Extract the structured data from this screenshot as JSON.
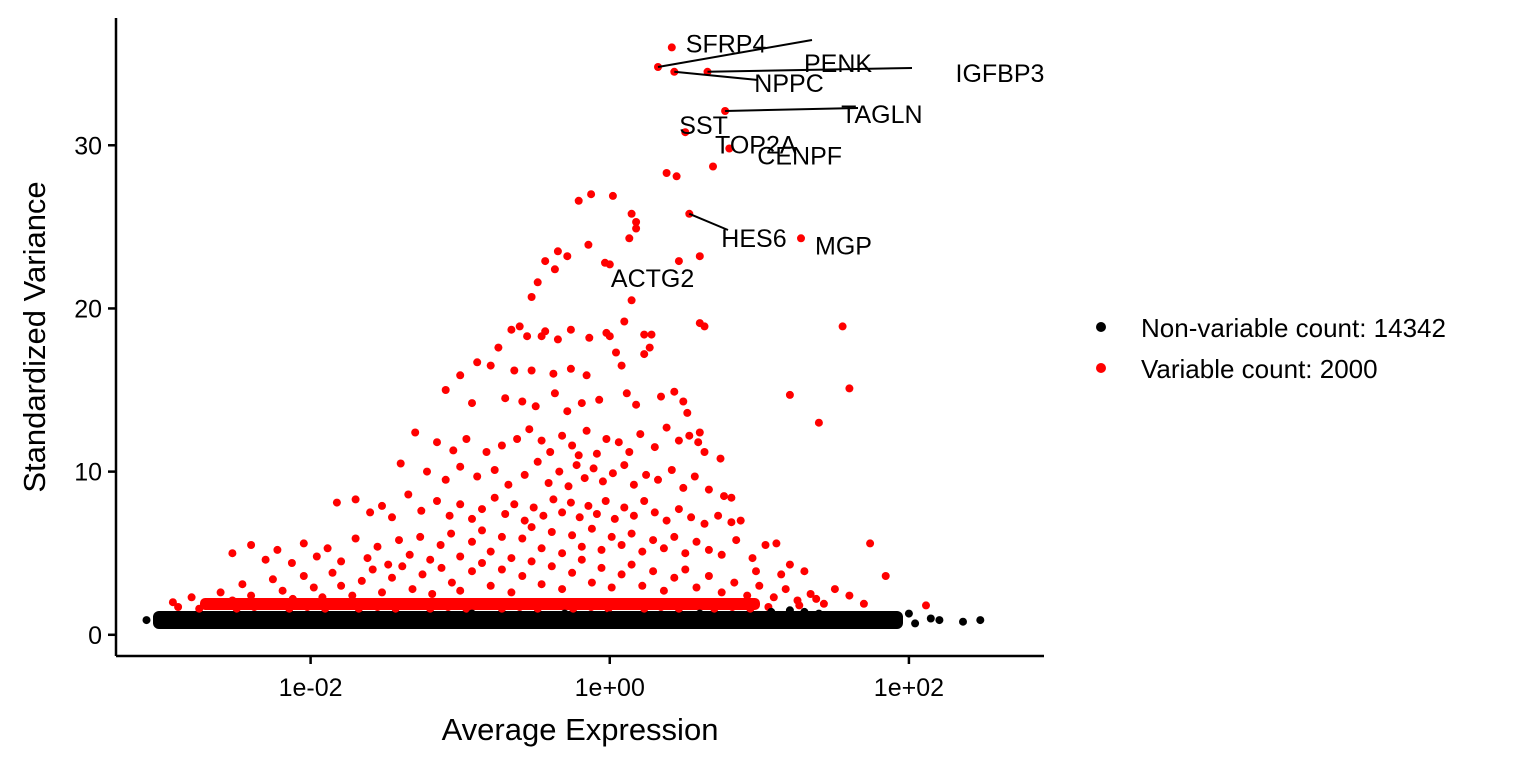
{
  "chart_data": {
    "type": "scatter",
    "title": "",
    "xlabel": "Average Expression",
    "ylabel": "Standardized Variance",
    "x_scale": "log10",
    "xlim": [
      0.0005,
      800
    ],
    "ylim": [
      -1.3,
      37.8
    ],
    "x_ticks": [
      {
        "value": 0.01,
        "label": "1e-02"
      },
      {
        "value": 1,
        "label": "1e+00"
      },
      {
        "value": 100,
        "label": "1e+02"
      }
    ],
    "y_ticks": [
      {
        "value": 0,
        "label": "0"
      },
      {
        "value": 10,
        "label": "10"
      },
      {
        "value": 20,
        "label": "20"
      },
      {
        "value": 30,
        "label": "30"
      }
    ],
    "grid": false,
    "legend_position": "right",
    "series": [
      {
        "name": "Non-variable count: 14342",
        "color": "#000000",
        "count": 14342
      },
      {
        "name": "Variable count: 2000",
        "color": "#ff0000",
        "count": 2000
      }
    ],
    "labeled_genes": [
      {
        "gene": "SFRP4",
        "x": 2.6,
        "y": 36.0
      },
      {
        "gene": "PENK",
        "x": 2.1,
        "y": 34.8
      },
      {
        "gene": "IGFBP3",
        "x": 4.5,
        "y": 34.5
      },
      {
        "gene": "NPPC",
        "x": 2.7,
        "y": 34.5
      },
      {
        "gene": "TAGLN",
        "x": 5.9,
        "y": 32.1
      },
      {
        "gene": "SST",
        "x": 3.2,
        "y": 30.8
      },
      {
        "gene": "CENPF",
        "x": 6.3,
        "y": 29.8
      },
      {
        "gene": "TOP2A",
        "x": 4.9,
        "y": 28.7
      },
      {
        "gene": "HES6",
        "x": 3.4,
        "y": 25.8
      },
      {
        "gene": "MGP",
        "x": 19.0,
        "y": 24.3
      },
      {
        "gene": "ACTG2",
        "x": 2.9,
        "y": 22.9
      }
    ],
    "variable_points": [
      [
        2.6,
        36.0
      ],
      [
        2.1,
        34.8
      ],
      [
        4.5,
        34.5
      ],
      [
        2.7,
        34.5
      ],
      [
        5.9,
        32.1
      ],
      [
        3.2,
        30.8
      ],
      [
        6.3,
        29.8
      ],
      [
        4.9,
        28.7
      ],
      [
        3.4,
        25.8
      ],
      [
        19.0,
        24.3
      ],
      [
        2.9,
        22.9
      ],
      [
        2.4,
        28.3
      ],
      [
        2.8,
        28.1
      ],
      [
        0.75,
        27.0
      ],
      [
        0.62,
        26.6
      ],
      [
        1.05,
        26.9
      ],
      [
        1.4,
        25.8
      ],
      [
        1.5,
        25.3
      ],
      [
        1.5,
        24.9
      ],
      [
        1.35,
        24.3
      ],
      [
        0.72,
        23.9
      ],
      [
        0.45,
        23.5
      ],
      [
        0.52,
        23.2
      ],
      [
        0.37,
        22.9
      ],
      [
        0.43,
        22.4
      ],
      [
        0.33,
        21.6
      ],
      [
        1.0,
        22.7
      ],
      [
        0.93,
        22.8
      ],
      [
        1.4,
        20.5
      ],
      [
        0.3,
        20.7
      ],
      [
        4.0,
        23.2
      ],
      [
        4.0,
        19.1
      ],
      [
        4.3,
        18.9
      ],
      [
        36.0,
        18.9
      ],
      [
        40.0,
        15.1
      ],
      [
        16.0,
        14.7
      ],
      [
        25.0,
        13.0
      ],
      [
        0.25,
        18.9
      ],
      [
        0.22,
        18.7
      ],
      [
        0.37,
        18.6
      ],
      [
        0.55,
        18.7
      ],
      [
        0.95,
        18.5
      ],
      [
        1.25,
        19.2
      ],
      [
        1.7,
        18.4
      ],
      [
        1.9,
        18.4
      ],
      [
        1.0,
        18.3
      ],
      [
        0.18,
        17.6
      ],
      [
        0.28,
        18.3
      ],
      [
        0.35,
        18.3
      ],
      [
        0.45,
        18.1
      ],
      [
        0.73,
        18.2
      ],
      [
        1.1,
        17.3
      ],
      [
        1.7,
        17.2
      ],
      [
        1.85,
        17.6
      ],
      [
        0.13,
        16.7
      ],
      [
        0.1,
        15.9
      ],
      [
        0.16,
        16.5
      ],
      [
        0.23,
        16.2
      ],
      [
        0.3,
        16.2
      ],
      [
        0.42,
        16.0
      ],
      [
        0.55,
        16.3
      ],
      [
        0.7,
        15.9
      ],
      [
        1.2,
        16.5
      ],
      [
        0.08,
        15.0
      ],
      [
        0.12,
        14.2
      ],
      [
        0.2,
        14.5
      ],
      [
        0.26,
        14.3
      ],
      [
        0.32,
        14.0
      ],
      [
        0.43,
        14.8
      ],
      [
        0.52,
        13.7
      ],
      [
        0.65,
        14.2
      ],
      [
        0.85,
        14.4
      ],
      [
        1.3,
        14.8
      ],
      [
        1.5,
        14.1
      ],
      [
        2.2,
        14.6
      ],
      [
        2.7,
        14.9
      ],
      [
        3.1,
        14.3
      ],
      [
        3.3,
        13.6
      ],
      [
        4.0,
        12.4
      ],
      [
        0.05,
        12.4
      ],
      [
        0.07,
        11.8
      ],
      [
        0.09,
        11.3
      ],
      [
        0.11,
        12.0
      ],
      [
        0.15,
        11.2
      ],
      [
        0.19,
        11.6
      ],
      [
        0.24,
        12.0
      ],
      [
        0.29,
        12.6
      ],
      [
        0.35,
        11.9
      ],
      [
        0.4,
        11.2
      ],
      [
        0.48,
        12.2
      ],
      [
        0.56,
        11.6
      ],
      [
        0.62,
        11.0
      ],
      [
        0.7,
        12.5
      ],
      [
        0.82,
        11.1
      ],
      [
        0.95,
        12.0
      ],
      [
        1.15,
        11.8
      ],
      [
        1.35,
        11.2
      ],
      [
        1.6,
        12.3
      ],
      [
        2.0,
        11.5
      ],
      [
        2.4,
        12.7
      ],
      [
        2.9,
        11.9
      ],
      [
        3.4,
        12.2
      ],
      [
        3.9,
        11.8
      ],
      [
        4.3,
        11.2
      ],
      [
        5.5,
        10.8
      ],
      [
        0.04,
        10.5
      ],
      [
        0.06,
        10.0
      ],
      [
        0.08,
        9.5
      ],
      [
        0.1,
        10.3
      ],
      [
        0.13,
        9.7
      ],
      [
        0.17,
        10.1
      ],
      [
        0.21,
        9.2
      ],
      [
        0.27,
        9.8
      ],
      [
        0.33,
        10.6
      ],
      [
        0.39,
        9.3
      ],
      [
        0.46,
        10.0
      ],
      [
        0.53,
        9.1
      ],
      [
        0.6,
        10.4
      ],
      [
        0.68,
        9.6
      ],
      [
        0.78,
        10.2
      ],
      [
        0.9,
        9.4
      ],
      [
        1.05,
        9.9
      ],
      [
        1.25,
        10.4
      ],
      [
        1.45,
        9.2
      ],
      [
        1.75,
        9.8
      ],
      [
        2.1,
        9.5
      ],
      [
        2.6,
        10.1
      ],
      [
        3.1,
        9.0
      ],
      [
        3.7,
        9.7
      ],
      [
        4.6,
        8.9
      ],
      [
        5.8,
        8.5
      ],
      [
        6.5,
        8.4
      ],
      [
        0.015,
        8.1
      ],
      [
        0.02,
        8.3
      ],
      [
        0.025,
        7.5
      ],
      [
        0.03,
        7.9
      ],
      [
        0.035,
        7.2
      ],
      [
        0.045,
        8.6
      ],
      [
        0.055,
        7.6
      ],
      [
        0.07,
        8.2
      ],
      [
        0.085,
        7.3
      ],
      [
        0.1,
        8.0
      ],
      [
        0.12,
        7.1
      ],
      [
        0.14,
        7.7
      ],
      [
        0.17,
        8.4
      ],
      [
        0.2,
        7.4
      ],
      [
        0.23,
        8.0
      ],
      [
        0.27,
        7.0
      ],
      [
        0.31,
        7.8
      ],
      [
        0.36,
        7.3
      ],
      [
        0.42,
        8.3
      ],
      [
        0.48,
        7.5
      ],
      [
        0.55,
        8.1
      ],
      [
        0.63,
        7.2
      ],
      [
        0.72,
        7.9
      ],
      [
        0.82,
        7.4
      ],
      [
        0.94,
        8.2
      ],
      [
        1.08,
        7.1
      ],
      [
        1.25,
        7.8
      ],
      [
        1.45,
        7.3
      ],
      [
        1.7,
        8.2
      ],
      [
        2.0,
        7.5
      ],
      [
        2.4,
        7.0
      ],
      [
        2.9,
        7.7
      ],
      [
        3.5,
        7.2
      ],
      [
        4.3,
        6.8
      ],
      [
        5.3,
        7.3
      ],
      [
        6.5,
        6.9
      ],
      [
        7.5,
        7.0
      ],
      [
        0.003,
        5.0
      ],
      [
        0.004,
        5.5
      ],
      [
        0.005,
        4.6
      ],
      [
        0.006,
        5.2
      ],
      [
        0.0075,
        4.4
      ],
      [
        0.009,
        5.6
      ],
      [
        0.011,
        4.8
      ],
      [
        0.013,
        5.3
      ],
      [
        0.016,
        4.5
      ],
      [
        0.02,
        5.9
      ],
      [
        0.024,
        4.7
      ],
      [
        0.028,
        5.4
      ],
      [
        0.033,
        4.3
      ],
      [
        0.039,
        5.8
      ],
      [
        0.046,
        4.9
      ],
      [
        0.054,
        6.0
      ],
      [
        0.063,
        4.6
      ],
      [
        0.074,
        5.5
      ],
      [
        0.087,
        6.2
      ],
      [
        0.1,
        4.8
      ],
      [
        0.12,
        5.7
      ],
      [
        0.14,
        6.4
      ],
      [
        0.16,
        5.1
      ],
      [
        0.19,
        6.0
      ],
      [
        0.22,
        4.7
      ],
      [
        0.26,
        5.9
      ],
      [
        0.3,
        6.6
      ],
      [
        0.35,
        5.3
      ],
      [
        0.41,
        6.3
      ],
      [
        0.48,
        5.0
      ],
      [
        0.56,
        6.1
      ],
      [
        0.65,
        5.4
      ],
      [
        0.76,
        6.5
      ],
      [
        0.88,
        5.2
      ],
      [
        1.03,
        6.0
      ],
      [
        1.2,
        5.5
      ],
      [
        1.4,
        6.2
      ],
      [
        1.65,
        5.1
      ],
      [
        1.95,
        5.8
      ],
      [
        2.3,
        5.3
      ],
      [
        2.7,
        6.0
      ],
      [
        3.2,
        5.0
      ],
      [
        3.8,
        5.7
      ],
      [
        4.6,
        5.2
      ],
      [
        5.6,
        4.9
      ],
      [
        7.0,
        5.8
      ],
      [
        9.0,
        4.7
      ],
      [
        11.0,
        5.5
      ],
      [
        13.0,
        5.6
      ],
      [
        16.0,
        4.3
      ],
      [
        20.0,
        3.9
      ],
      [
        14.0,
        3.7
      ],
      [
        9.5,
        3.9
      ],
      [
        55.0,
        5.6
      ],
      [
        70.0,
        3.6
      ],
      [
        0.0012,
        2.0
      ],
      [
        0.0016,
        2.3
      ],
      [
        0.002,
        1.9
      ],
      [
        0.0025,
        2.6
      ],
      [
        0.003,
        2.1
      ],
      [
        0.0035,
        3.1
      ],
      [
        0.004,
        2.4
      ],
      [
        0.0048,
        2.0
      ],
      [
        0.0056,
        3.4
      ],
      [
        0.0065,
        2.7
      ],
      [
        0.0076,
        2.2
      ],
      [
        0.009,
        3.6
      ],
      [
        0.0105,
        2.9
      ],
      [
        0.012,
        2.3
      ],
      [
        0.014,
        3.8
      ],
      [
        0.016,
        3.0
      ],
      [
        0.019,
        2.4
      ],
      [
        0.022,
        3.3
      ],
      [
        0.026,
        4.0
      ],
      [
        0.03,
        2.6
      ],
      [
        0.035,
        3.5
      ],
      [
        0.041,
        4.2
      ],
      [
        0.048,
        2.8
      ],
      [
        0.056,
        3.7
      ],
      [
        0.065,
        2.5
      ],
      [
        0.075,
        4.1
      ],
      [
        0.088,
        3.2
      ],
      [
        0.1,
        2.7
      ],
      [
        0.12,
        3.9
      ],
      [
        0.14,
        4.4
      ],
      [
        0.16,
        3.0
      ],
      [
        0.19,
        4.0
      ],
      [
        0.22,
        2.6
      ],
      [
        0.26,
        3.6
      ],
      [
        0.3,
        4.5
      ],
      [
        0.35,
        3.1
      ],
      [
        0.41,
        4.2
      ],
      [
        0.48,
        2.8
      ],
      [
        0.56,
        3.8
      ],
      [
        0.65,
        4.6
      ],
      [
        0.76,
        3.2
      ],
      [
        0.88,
        4.1
      ],
      [
        1.03,
        2.9
      ],
      [
        1.2,
        3.7
      ],
      [
        1.4,
        4.3
      ],
      [
        1.65,
        3.0
      ],
      [
        1.95,
        3.9
      ],
      [
        2.3,
        2.7
      ],
      [
        2.7,
        3.5
      ],
      [
        3.2,
        4.0
      ],
      [
        3.8,
        2.9
      ],
      [
        4.6,
        3.6
      ],
      [
        5.6,
        2.6
      ],
      [
        6.8,
        3.2
      ],
      [
        8.3,
        2.4
      ],
      [
        10.0,
        3.0
      ],
      [
        12.5,
        2.3
      ],
      [
        15.0,
        2.8
      ],
      [
        18.0,
        2.1
      ],
      [
        22.0,
        2.5
      ],
      [
        27.0,
        1.9
      ],
      [
        32.0,
        2.8
      ],
      [
        40.0,
        2.4
      ],
      [
        50.0,
        1.9
      ],
      [
        130.0,
        1.8
      ],
      [
        24.0,
        2.2
      ],
      [
        18.5,
        1.8
      ],
      [
        0.0013,
        1.7
      ],
      [
        0.0018,
        1.6
      ],
      [
        0.0024,
        1.8
      ],
      [
        0.0032,
        1.6
      ],
      [
        0.0042,
        1.7
      ],
      [
        0.0055,
        1.8
      ],
      [
        0.0072,
        1.6
      ],
      [
        0.0095,
        1.7
      ],
      [
        0.0125,
        1.6
      ],
      [
        0.016,
        1.8
      ],
      [
        0.021,
        1.6
      ],
      [
        0.028,
        1.7
      ],
      [
        0.037,
        1.6
      ],
      [
        0.048,
        1.8
      ],
      [
        0.063,
        1.6
      ],
      [
        0.083,
        1.7
      ],
      [
        0.11,
        1.6
      ],
      [
        0.145,
        1.8
      ],
      [
        0.19,
        1.6
      ],
      [
        0.25,
        1.7
      ],
      [
        0.33,
        1.6
      ],
      [
        0.43,
        1.8
      ],
      [
        0.57,
        1.6
      ],
      [
        0.75,
        1.7
      ],
      [
        0.98,
        1.6
      ],
      [
        1.3,
        1.8
      ],
      [
        1.7,
        1.6
      ],
      [
        2.2,
        1.7
      ],
      [
        2.9,
        1.6
      ],
      [
        3.8,
        1.8
      ],
      [
        5.0,
        1.6
      ],
      [
        6.6,
        1.7
      ],
      [
        8.7,
        1.6
      ],
      [
        11.5,
        1.7
      ]
    ],
    "nonvariable_points": [
      [
        0.0008,
        0.9
      ],
      [
        0.001,
        1.0
      ],
      [
        0.0012,
        0.8
      ],
      [
        0.0015,
        1.1
      ],
      [
        0.002,
        0.9
      ],
      [
        0.003,
        1.2
      ],
      [
        0.005,
        1.0
      ],
      [
        0.008,
        1.1
      ],
      [
        0.015,
        1.0
      ],
      [
        0.03,
        1.2
      ],
      [
        0.06,
        1.1
      ],
      [
        0.12,
        1.3
      ],
      [
        0.25,
        1.2
      ],
      [
        0.5,
        1.3
      ],
      [
        1.0,
        1.2
      ],
      [
        2.0,
        1.1
      ],
      [
        4.0,
        1.3
      ],
      [
        8.0,
        1.2
      ],
      [
        12.0,
        1.4
      ],
      [
        16.0,
        1.5
      ],
      [
        20.0,
        1.4
      ],
      [
        25.0,
        1.3
      ],
      [
        30.0,
        1.2
      ],
      [
        40.0,
        1.1
      ],
      [
        50.0,
        1.0
      ],
      [
        60.0,
        0.9
      ],
      [
        75.0,
        0.8
      ],
      [
        100.0,
        1.3
      ],
      [
        110.0,
        0.7
      ],
      [
        140.0,
        1.0
      ],
      [
        160.0,
        0.9
      ],
      [
        230.0,
        0.8
      ],
      [
        300.0,
        0.9
      ]
    ]
  }
}
